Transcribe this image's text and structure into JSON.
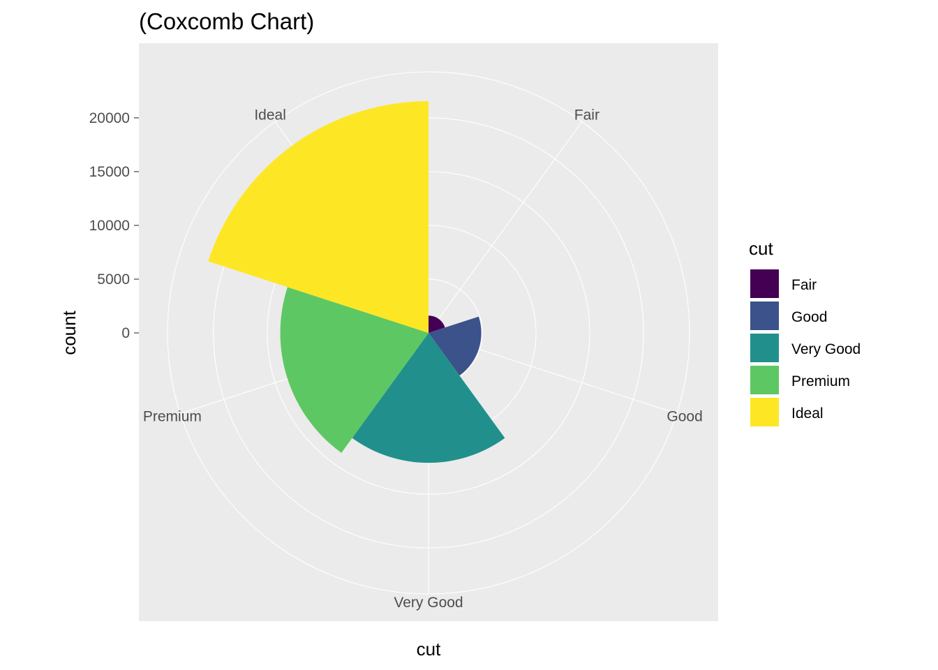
{
  "chart_data": {
    "type": "bar",
    "subtype": "coxcomb",
    "title": "(Coxcomb Chart)",
    "xlabel": "cut",
    "ylabel": "count",
    "categories": [
      "Fair",
      "Good",
      "Very Good",
      "Premium",
      "Ideal"
    ],
    "values": [
      1610,
      4906,
      12082,
      13791,
      21551
    ],
    "colors": [
      "#440154",
      "#3B528B",
      "#21908C",
      "#5DC863",
      "#FDE725"
    ],
    "yticks": [
      0,
      5000,
      10000,
      15000,
      20000
    ],
    "ylim": [
      0,
      21551
    ],
    "grid": true,
    "legend": {
      "title": "cut",
      "position": "right",
      "items": [
        "Fair",
        "Good",
        "Very Good",
        "Premium",
        "Ideal"
      ]
    },
    "panel_background": "#EBEBEB",
    "grid_color": "#FFFFFF"
  }
}
